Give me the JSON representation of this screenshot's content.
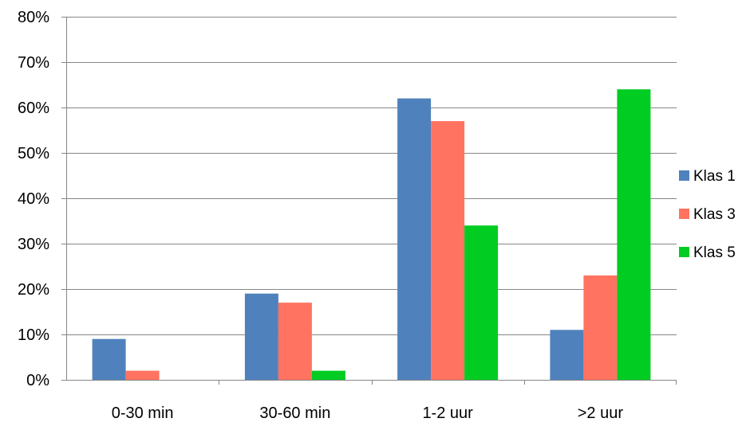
{
  "chart_data": {
    "type": "bar",
    "title": "",
    "xlabel": "",
    "ylabel": "",
    "categories": [
      "0-30 min",
      "30-60 min",
      "1-2 uur",
      ">2 uur"
    ],
    "series": [
      {
        "name": "Klas 1",
        "color": "#4F81BD",
        "values": [
          9,
          19,
          62,
          11
        ]
      },
      {
        "name": "Klas 3",
        "color": "#FF7360",
        "values": [
          2,
          17,
          57,
          23
        ]
      },
      {
        "name": "Klas 5",
        "color": "#00CC22",
        "values": [
          0,
          2,
          34,
          64
        ]
      }
    ],
    "ylim": [
      0,
      80
    ],
    "y_ticks": [
      0,
      10,
      20,
      30,
      40,
      50,
      60,
      70,
      80
    ],
    "y_tick_labels": [
      "0%",
      "10%",
      "20%",
      "30%",
      "40%",
      "50%",
      "60%",
      "70%",
      "80%"
    ],
    "grid": true,
    "legend_position": "right"
  }
}
